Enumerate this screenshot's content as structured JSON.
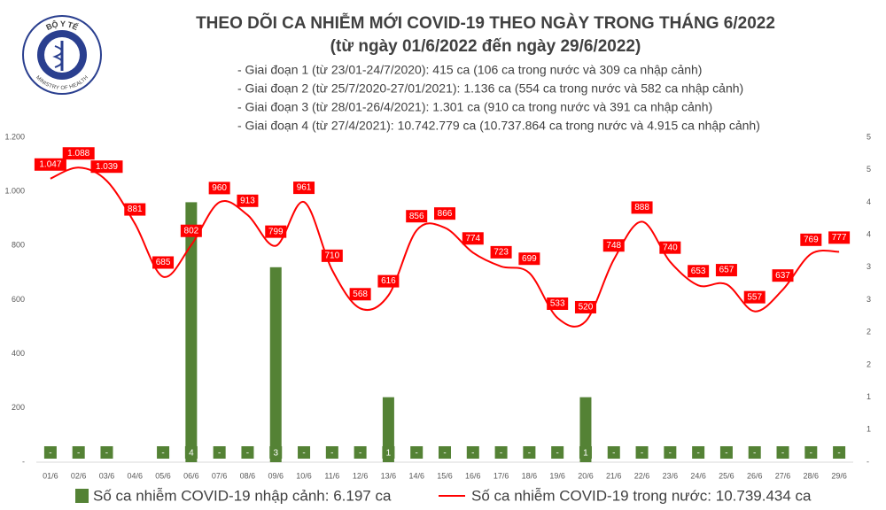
{
  "chart_data": {
    "type": "combo",
    "title": "THEO DÕI CA NHIỄM MỚI COVID-19 THEO NGÀY TRONG THÁNG 6/2022",
    "subtitle": "(từ ngày 01/6/2022 đến ngày 29/6/2022)",
    "logo": {
      "top": "BỘ Y TẾ",
      "bottom": "MINISTRY OF HEALTH"
    },
    "notes": [
      "- Giai đoạn 1 (từ 23/01-24/7/2020): 415 ca (106 ca trong nước và 309 ca nhập cảnh)",
      "- Giai đoạn 2 (từ 25/7/2020-27/01/2021): 1.136 ca (554 ca trong nước và 582 ca nhập cảnh)",
      "- Giai đoạn 3 (từ 28/01-26/4/2021): 1.301 ca (910 ca trong nước và 391 ca nhập cảnh)",
      "- Giai đoạn 4 (từ 27/4/2021): 10.742.779 ca (10.737.864 ca trong nước và 4.915 ca nhập cảnh)"
    ],
    "categories": [
      "01/6",
      "02/6",
      "03/6",
      "04/6",
      "05/6",
      "06/6",
      "07/6",
      "08/6",
      "09/6",
      "10/6",
      "11/6",
      "12/6",
      "13/6",
      "14/6",
      "15/6",
      "16/6",
      "17/6",
      "18/6",
      "19/6",
      "20/6",
      "21/6",
      "22/6",
      "23/6",
      "24/6",
      "25/6",
      "26/6",
      "27/6",
      "28/6",
      "29/6"
    ],
    "ylim": [
      0,
      1200
    ],
    "yticks": [
      {
        "value": 0,
        "label": "-"
      },
      200,
      400,
      600,
      800,
      {
        "value": 1000,
        "label": "1.000"
      },
      {
        "value": 1200,
        "label": "1.200"
      }
    ],
    "y2lim": [
      0,
      5
    ],
    "y2ticks": [
      {
        "value": 0,
        "label": "-"
      },
      {
        "value": 0.5,
        "label": "1"
      },
      1,
      {
        "value": 1.5,
        "label": "2"
      },
      2,
      {
        "value": 2.5,
        "label": "3"
      },
      3,
      {
        "value": 3.5,
        "label": "4"
      },
      4,
      {
        "value": 4.5,
        "label": "5"
      },
      5
    ],
    "grid": false,
    "legend": "bottom",
    "series": [
      {
        "name": "Số ca nhiễm COVID-19 nhập cảnh: 6.197 ca",
        "type": "bar",
        "axis": "y2",
        "color": "#548235",
        "values": [
          0,
          0,
          0,
          0,
          0,
          4,
          0,
          0,
          3,
          0,
          0,
          0,
          1,
          0,
          0,
          0,
          0,
          0,
          0,
          1,
          0,
          0,
          0,
          0,
          0,
          0,
          0,
          0,
          0
        ],
        "value_labels": [
          "-",
          "-",
          "-",
          null,
          "-",
          "4",
          "-",
          "-",
          "3",
          "-",
          "-",
          "-",
          "1",
          "-",
          "-",
          "-",
          "-",
          "-",
          "-",
          "1",
          "-",
          "-",
          "-",
          "-",
          "-",
          "-",
          "-",
          "-",
          "-"
        ]
      },
      {
        "name": "Số ca nhiễm COVID-19 trong nước: 10.739.434 ca",
        "type": "line",
        "axis": "y",
        "color": "#ff0000",
        "values": [
          1047,
          1088,
          1039,
          881,
          685,
          802,
          960,
          913,
          799,
          961,
          710,
          568,
          616,
          856,
          866,
          774,
          723,
          699,
          533,
          520,
          748,
          888,
          740,
          653,
          657,
          557,
          637,
          769,
          777
        ],
        "value_labels": [
          "1.047",
          "1.088",
          "1.039",
          "881",
          "685",
          "802",
          "960",
          "913",
          "799",
          "961",
          "710",
          "568",
          "616",
          "856",
          "866",
          "774",
          "723",
          "699",
          "533",
          "520",
          "748",
          "888",
          "740",
          "653",
          "657",
          "557",
          "637",
          "769",
          "777"
        ]
      }
    ]
  }
}
